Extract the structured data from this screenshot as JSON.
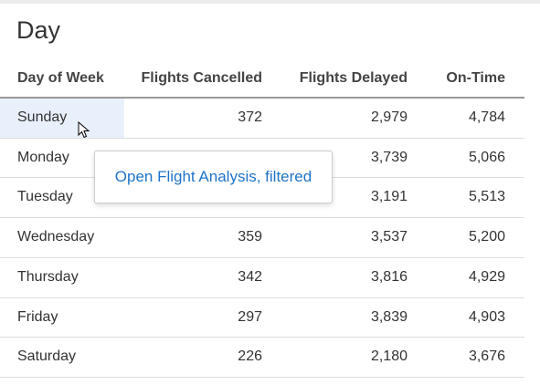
{
  "header": {
    "title": "Day"
  },
  "table": {
    "columns": [
      "Day of Week",
      "Flights Cancelled",
      "Flights Delayed",
      "On-Time"
    ],
    "rows": [
      [
        "Sunday",
        "372",
        "2,979",
        "4,784"
      ],
      [
        "Monday",
        null,
        "3,739",
        "5,066"
      ],
      [
        "Tuesday",
        null,
        "3,191",
        "5,513"
      ],
      [
        "Wednesday",
        "359",
        "3,537",
        "5,200"
      ],
      [
        "Thursday",
        "342",
        "3,816",
        "4,929"
      ],
      [
        "Friday",
        "297",
        "3,839",
        "4,903"
      ],
      [
        "Saturday",
        "226",
        "2,180",
        "3,676"
      ]
    ]
  },
  "tooltip": {
    "label": "Open Flight Analysis, filtered"
  }
}
